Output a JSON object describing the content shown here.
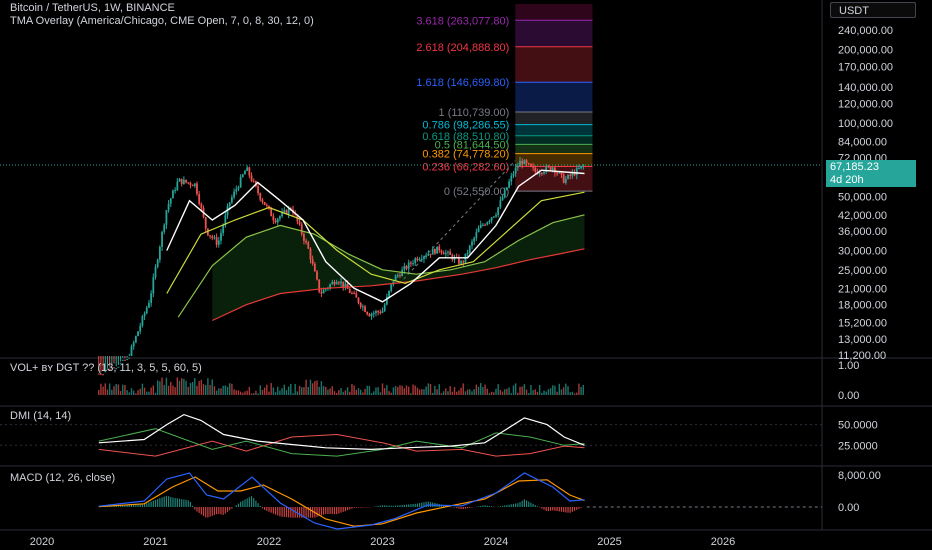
{
  "header": {
    "symbol": "Bitcoin / TetherUS, 1W, BINANCE",
    "overlay": "TMA Overlay (America/Chicago, CME Open, 7, 0, 8, 30, 12, 0)"
  },
  "currency_button": "USDT",
  "current_price": "67,185.23",
  "countdown": "4d 20h",
  "colors": {
    "up": "#26a69a",
    "down": "#ef5350",
    "ma_fast": "#ffffff",
    "ma_mid": "#cddc39",
    "ma_slow": "#8bc34a",
    "ma_red": "#e53935",
    "macd": "#2962ff",
    "signal": "#ff9800"
  },
  "chart_data": [
    {
      "type": "line",
      "name": "price-pane",
      "x_ticks": [
        "2020",
        "2021",
        "2022",
        "2023",
        "2024",
        "2025",
        "2026"
      ],
      "y_scale": "log",
      "y_ticks": [
        "240,000.00",
        "200,000.00",
        "170,000.00",
        "140,000.00",
        "120,000.00",
        "100,000.00",
        "84,000.00",
        "72,000.00",
        "50,000.00",
        "42,000.00",
        "36,000.00",
        "30,000.00",
        "25,000.00",
        "21,000.00",
        "18,000.00",
        "15,200.00",
        "13,000.00",
        "11,200.00"
      ],
      "fib_levels": [
        {
          "label": "3.618 (263,077.80)",
          "value": 263077.8,
          "color": "#9c27b0"
        },
        {
          "label": "2.618 (204,888.80)",
          "value": 204888.8,
          "color": "#f23645"
        },
        {
          "label": "1.618 (146,699.80)",
          "value": 146699.8,
          "color": "#2962ff"
        },
        {
          "label": "1 (110,739.00)",
          "value": 110739,
          "color": "#787b86"
        },
        {
          "label": "0.786 (98,286.55)",
          "value": 98286.55,
          "color": "#00bcd4"
        },
        {
          "label": "0.618 (88,510.80)",
          "value": 88510.8,
          "color": "#089981"
        },
        {
          "label": "0.5 (81,644.50)",
          "value": 81644.5,
          "color": "#4caf50"
        },
        {
          "label": "0.382 (74,778.20)",
          "value": 74778.2,
          "color": "#ff9800"
        },
        {
          "label": "0.236 (66,282.60)",
          "value": 66282.6,
          "color": "#f23645"
        },
        {
          "label": "0 (52,550.00)",
          "value": 52550,
          "color": "#787b86"
        }
      ],
      "price_series": [
        [
          2020.5,
          9400
        ],
        [
          2020.75,
          10600
        ],
        [
          2020.95,
          19000
        ],
        [
          2021.1,
          45000
        ],
        [
          2021.2,
          58000
        ],
        [
          2021.35,
          56000
        ],
        [
          2021.45,
          36000
        ],
        [
          2021.55,
          32000
        ],
        [
          2021.65,
          47000
        ],
        [
          2021.8,
          65000
        ],
        [
          2021.92,
          50000
        ],
        [
          2022.05,
          40000
        ],
        [
          2022.2,
          45000
        ],
        [
          2022.35,
          30000
        ],
        [
          2022.45,
          20000
        ],
        [
          2022.6,
          23000
        ],
        [
          2022.75,
          19500
        ],
        [
          2022.88,
          16500
        ],
        [
          2023.0,
          17000
        ],
        [
          2023.1,
          23000
        ],
        [
          2023.3,
          28000
        ],
        [
          2023.5,
          30500
        ],
        [
          2023.7,
          26500
        ],
        [
          2023.85,
          37000
        ],
        [
          2024.0,
          43000
        ],
        [
          2024.15,
          62000
        ],
        [
          2024.22,
          70000
        ],
        [
          2024.35,
          63000
        ],
        [
          2024.5,
          66000
        ],
        [
          2024.6,
          58000
        ],
        [
          2024.7,
          63000
        ],
        [
          2024.78,
          67185
        ]
      ],
      "ma_fast": [
        [
          2020.8,
          11000
        ],
        [
          2021.1,
          30000
        ],
        [
          2021.3,
          48000
        ],
        [
          2021.5,
          40000
        ],
        [
          2021.7,
          46000
        ],
        [
          2021.9,
          57000
        ],
        [
          2022.1,
          48000
        ],
        [
          2022.3,
          40000
        ],
        [
          2022.5,
          27000
        ],
        [
          2022.75,
          21000
        ],
        [
          2023.0,
          18500
        ],
        [
          2023.25,
          22000
        ],
        [
          2023.5,
          28000
        ],
        [
          2023.75,
          28000
        ],
        [
          2024.0,
          38000
        ],
        [
          2024.2,
          55000
        ],
        [
          2024.4,
          64000
        ],
        [
          2024.78,
          62000
        ]
      ],
      "ma_mid": [
        [
          2020.8,
          9000
        ],
        [
          2021.1,
          20000
        ],
        [
          2021.4,
          35000
        ],
        [
          2021.7,
          40000
        ],
        [
          2022.0,
          45000
        ],
        [
          2022.3,
          40000
        ],
        [
          2022.6,
          30000
        ],
        [
          2022.9,
          24000
        ],
        [
          2023.2,
          22000
        ],
        [
          2023.5,
          25000
        ],
        [
          2023.8,
          27000
        ],
        [
          2024.1,
          36000
        ],
        [
          2024.4,
          48000
        ],
        [
          2024.78,
          52000
        ]
      ],
      "ma_slow": [
        [
          2020.8,
          8500
        ],
        [
          2021.2,
          16000
        ],
        [
          2021.5,
          26000
        ],
        [
          2021.8,
          34000
        ],
        [
          2022.1,
          38000
        ],
        [
          2022.4,
          35000
        ],
        [
          2022.7,
          29000
        ],
        [
          2023.0,
          25000
        ],
        [
          2023.3,
          24000
        ],
        [
          2023.6,
          25000
        ],
        [
          2023.9,
          27000
        ],
        [
          2024.2,
          33000
        ],
        [
          2024.5,
          39000
        ],
        [
          2024.78,
          42000
        ]
      ],
      "ma_red": [
        [
          2021.5,
          15500
        ],
        [
          2021.8,
          18000
        ],
        [
          2022.1,
          20000
        ],
        [
          2022.5,
          21000
        ],
        [
          2022.9,
          21500
        ],
        [
          2023.3,
          22500
        ],
        [
          2023.7,
          24000
        ],
        [
          2024.0,
          25500
        ],
        [
          2024.3,
          27500
        ],
        [
          2024.55,
          29000
        ],
        [
          2024.78,
          30500
        ]
      ]
    },
    {
      "type": "bar",
      "name": "volume-pane",
      "legend": "VOL+ ʙʏ DGT ?? (13, 11, 3, 5, 5, 60, 5)",
      "y_ticks": [
        "1.00",
        "0.00"
      ],
      "ylim": [
        0,
        1
      ]
    },
    {
      "type": "line",
      "name": "dmi-pane",
      "legend": "DMI (14, 14)",
      "y_ticks": [
        "50.0000",
        "25.0000"
      ],
      "ylim": [
        0,
        70
      ],
      "adx": [
        [
          2020.5,
          28
        ],
        [
          2020.9,
          32
        ],
        [
          2021.1,
          50
        ],
        [
          2021.25,
          62
        ],
        [
          2021.4,
          55
        ],
        [
          2021.6,
          38
        ],
        [
          2021.9,
          30
        ],
        [
          2022.2,
          26
        ],
        [
          2022.5,
          22
        ],
        [
          2022.9,
          20
        ],
        [
          2023.2,
          22
        ],
        [
          2023.6,
          24
        ],
        [
          2023.9,
          28
        ],
        [
          2024.1,
          45
        ],
        [
          2024.25,
          58
        ],
        [
          2024.45,
          50
        ],
        [
          2024.6,
          35
        ],
        [
          2024.78,
          25
        ]
      ],
      "di_plus": [
        [
          2020.5,
          30
        ],
        [
          2021.0,
          45
        ],
        [
          2021.2,
          35
        ],
        [
          2021.5,
          20
        ],
        [
          2021.8,
          30
        ],
        [
          2022.2,
          15
        ],
        [
          2022.6,
          12
        ],
        [
          2023.0,
          20
        ],
        [
          2023.3,
          30
        ],
        [
          2023.7,
          22
        ],
        [
          2024.0,
          40
        ],
        [
          2024.3,
          35
        ],
        [
          2024.6,
          25
        ],
        [
          2024.78,
          27
        ]
      ],
      "di_minus": [
        [
          2020.5,
          20
        ],
        [
          2021.0,
          12
        ],
        [
          2021.5,
          30
        ],
        [
          2021.8,
          18
        ],
        [
          2022.2,
          35
        ],
        [
          2022.6,
          38
        ],
        [
          2023.0,
          28
        ],
        [
          2023.3,
          18
        ],
        [
          2023.7,
          20
        ],
        [
          2024.0,
          12
        ],
        [
          2024.3,
          15
        ],
        [
          2024.6,
          24
        ],
        [
          2024.78,
          22
        ]
      ]
    },
    {
      "type": "line",
      "name": "macd-pane",
      "legend": "MACD (12, 26, close)",
      "y_ticks": [
        "8,000.00",
        "0.00"
      ],
      "ylim": [
        -6000,
        9000
      ],
      "macd": [
        [
          2020.5,
          200
        ],
        [
          2020.9,
          1500
        ],
        [
          2021.1,
          7000
        ],
        [
          2021.3,
          8500
        ],
        [
          2021.45,
          3000
        ],
        [
          2021.6,
          2000
        ],
        [
          2021.85,
          7500
        ],
        [
          2022.1,
          1000
        ],
        [
          2022.4,
          -4000
        ],
        [
          2022.6,
          -5500
        ],
        [
          2022.9,
          -4500
        ],
        [
          2023.1,
          -3000
        ],
        [
          2023.4,
          500
        ],
        [
          2023.7,
          300
        ],
        [
          2024.0,
          3500
        ],
        [
          2024.25,
          8500
        ],
        [
          2024.5,
          5000
        ],
        [
          2024.65,
          1500
        ],
        [
          2024.78,
          1800
        ]
      ],
      "signal": [
        [
          2020.5,
          100
        ],
        [
          2020.9,
          800
        ],
        [
          2021.15,
          5000
        ],
        [
          2021.35,
          7500
        ],
        [
          2021.55,
          4000
        ],
        [
          2021.75,
          4000
        ],
        [
          2021.95,
          5500
        ],
        [
          2022.2,
          2000
        ],
        [
          2022.5,
          -3000
        ],
        [
          2022.75,
          -4800
        ],
        [
          2023.0,
          -4200
        ],
        [
          2023.3,
          -1500
        ],
        [
          2023.6,
          300
        ],
        [
          2023.9,
          2000
        ],
        [
          2024.2,
          6500
        ],
        [
          2024.45,
          6800
        ],
        [
          2024.65,
          3000
        ],
        [
          2024.78,
          1600
        ]
      ]
    }
  ]
}
